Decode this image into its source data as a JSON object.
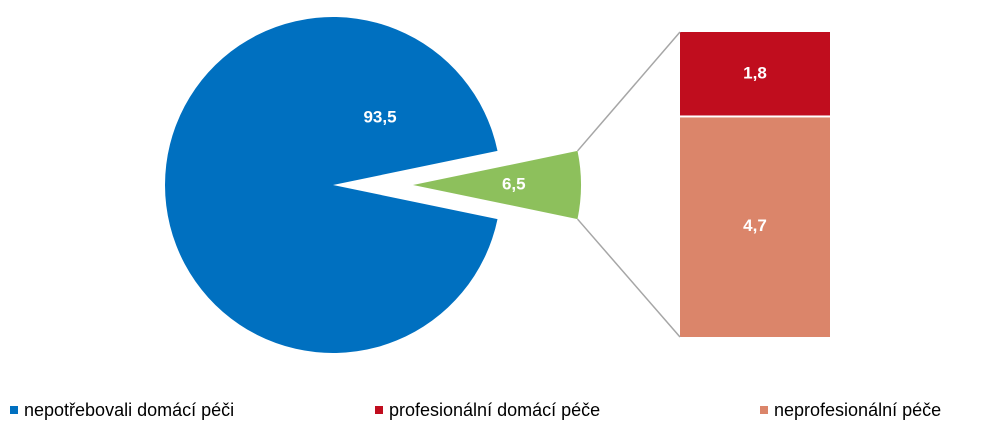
{
  "chart_data": {
    "type": "pie-bar",
    "pie": {
      "names": [
        "nepotřebovali domácí péči",
        null
      ],
      "values": [
        93.5,
        6.5
      ],
      "value_labels": [
        "93,5",
        "6,5"
      ],
      "colors": [
        "#0070c0",
        "#8dc05c"
      ]
    },
    "bar": {
      "names": [
        "profesionální domácí péče",
        "neprofesionální péče"
      ],
      "values": [
        1.8,
        4.7
      ],
      "value_labels": [
        "1,8",
        "4,7"
      ],
      "colors": [
        "#c00d1e",
        "#db856a"
      ]
    }
  }
}
